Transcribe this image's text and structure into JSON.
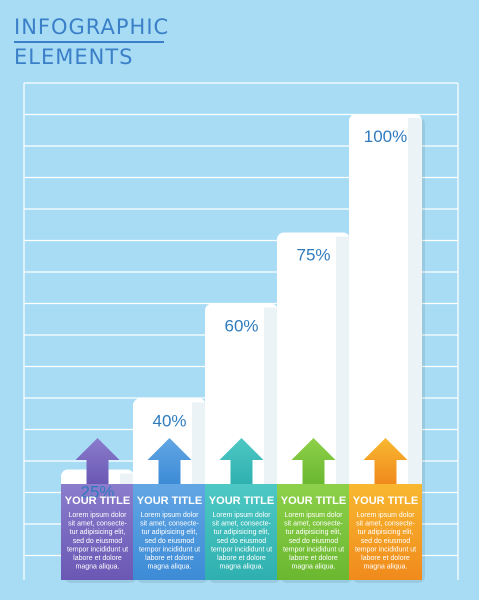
{
  "header": {
    "line1": "INFOGRAPHIC",
    "line2": "ELEMENTS"
  },
  "colors": {
    "background": "#a7dcf4",
    "grid": "#ffffff",
    "text": "#3a7fc8",
    "bars": [
      "#6a58b4",
      "#3d8bd6",
      "#2fb0b0",
      "#6ab830",
      "#f08a1c"
    ],
    "bars_light": [
      "#8b7ccc",
      "#62a6e4",
      "#4ec8c4",
      "#8ed04a",
      "#f8b830"
    ]
  },
  "chart_data": {
    "type": "bar",
    "categories": [
      "YOUR TITLE",
      "YOUR TITLE",
      "YOUR TITLE",
      "YOUR TITLE",
      "YOUR TITLE"
    ],
    "values": [
      25,
      40,
      60,
      75,
      100
    ],
    "value_labels": [
      "25%",
      "40%",
      "60%",
      "75%",
      "100%"
    ],
    "descriptions": [
      [
        "Lorem ipsum dolor",
        "sit amet, consecte-",
        "tur adipisicing elit,",
        "sed do eiusmod",
        "tempor incididunt ut",
        "labore et dolore",
        "magna aliqua."
      ],
      [
        "Lorem ipsum dolor",
        "sit amet, consecte-",
        "tur adipisicing elit,",
        "sed do eiusmod",
        "tempor incididunt ut",
        "labore et dolore",
        "magna aliqua."
      ],
      [
        "Lorem ipsum dolor",
        "sit amet, consecte-",
        "tur adipisicing elit,",
        "sed do eiusmod",
        "tempor incididunt ut",
        "labore et dolore",
        "magna aliqua."
      ],
      [
        "Lorem ipsum dolor",
        "sit amet, consecte-",
        "tur adipisicing elit,",
        "sed do eiusmod",
        "tempor incididunt ut",
        "labore et dolore",
        "magna aliqua."
      ],
      [
        "Lorem ipsum dolor",
        "sit amet, consecte-",
        "tur adipisicing elit,",
        "sed do eiusmod",
        "tempor incididunt ut",
        "labore et dolore",
        "magna aliqua."
      ]
    ],
    "ylim": [
      0,
      100
    ],
    "grid": true
  }
}
